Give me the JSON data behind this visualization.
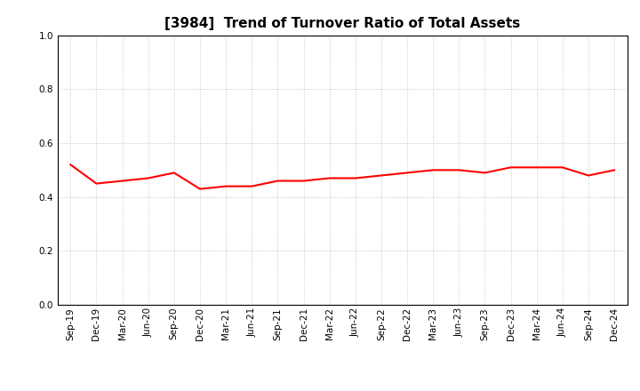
{
  "title": "[3984]  Trend of Turnover Ratio of Total Assets",
  "x_labels": [
    "Sep-19",
    "Dec-19",
    "Mar-20",
    "Jun-20",
    "Sep-20",
    "Dec-20",
    "Mar-21",
    "Jun-21",
    "Sep-21",
    "Dec-21",
    "Mar-22",
    "Jun-22",
    "Sep-22",
    "Dec-22",
    "Mar-23",
    "Jun-23",
    "Sep-23",
    "Dec-23",
    "Mar-24",
    "Jun-24",
    "Sep-24",
    "Dec-24"
  ],
  "y_values": [
    0.52,
    0.45,
    0.46,
    0.47,
    0.49,
    0.43,
    0.44,
    0.44,
    0.46,
    0.46,
    0.47,
    0.47,
    0.48,
    0.49,
    0.5,
    0.5,
    0.49,
    0.51,
    0.51,
    0.51,
    0.48,
    0.5
  ],
  "line_color": "#FF0000",
  "line_width": 1.5,
  "ylim": [
    0.0,
    1.0
  ],
  "yticks": [
    0.0,
    0.2,
    0.4,
    0.6,
    0.8,
    1.0
  ],
  "background_color": "#FFFFFF",
  "grid_color": "#BBBBBB",
  "title_fontsize": 11,
  "tick_fontsize": 7.5,
  "spine_color": "#000000"
}
